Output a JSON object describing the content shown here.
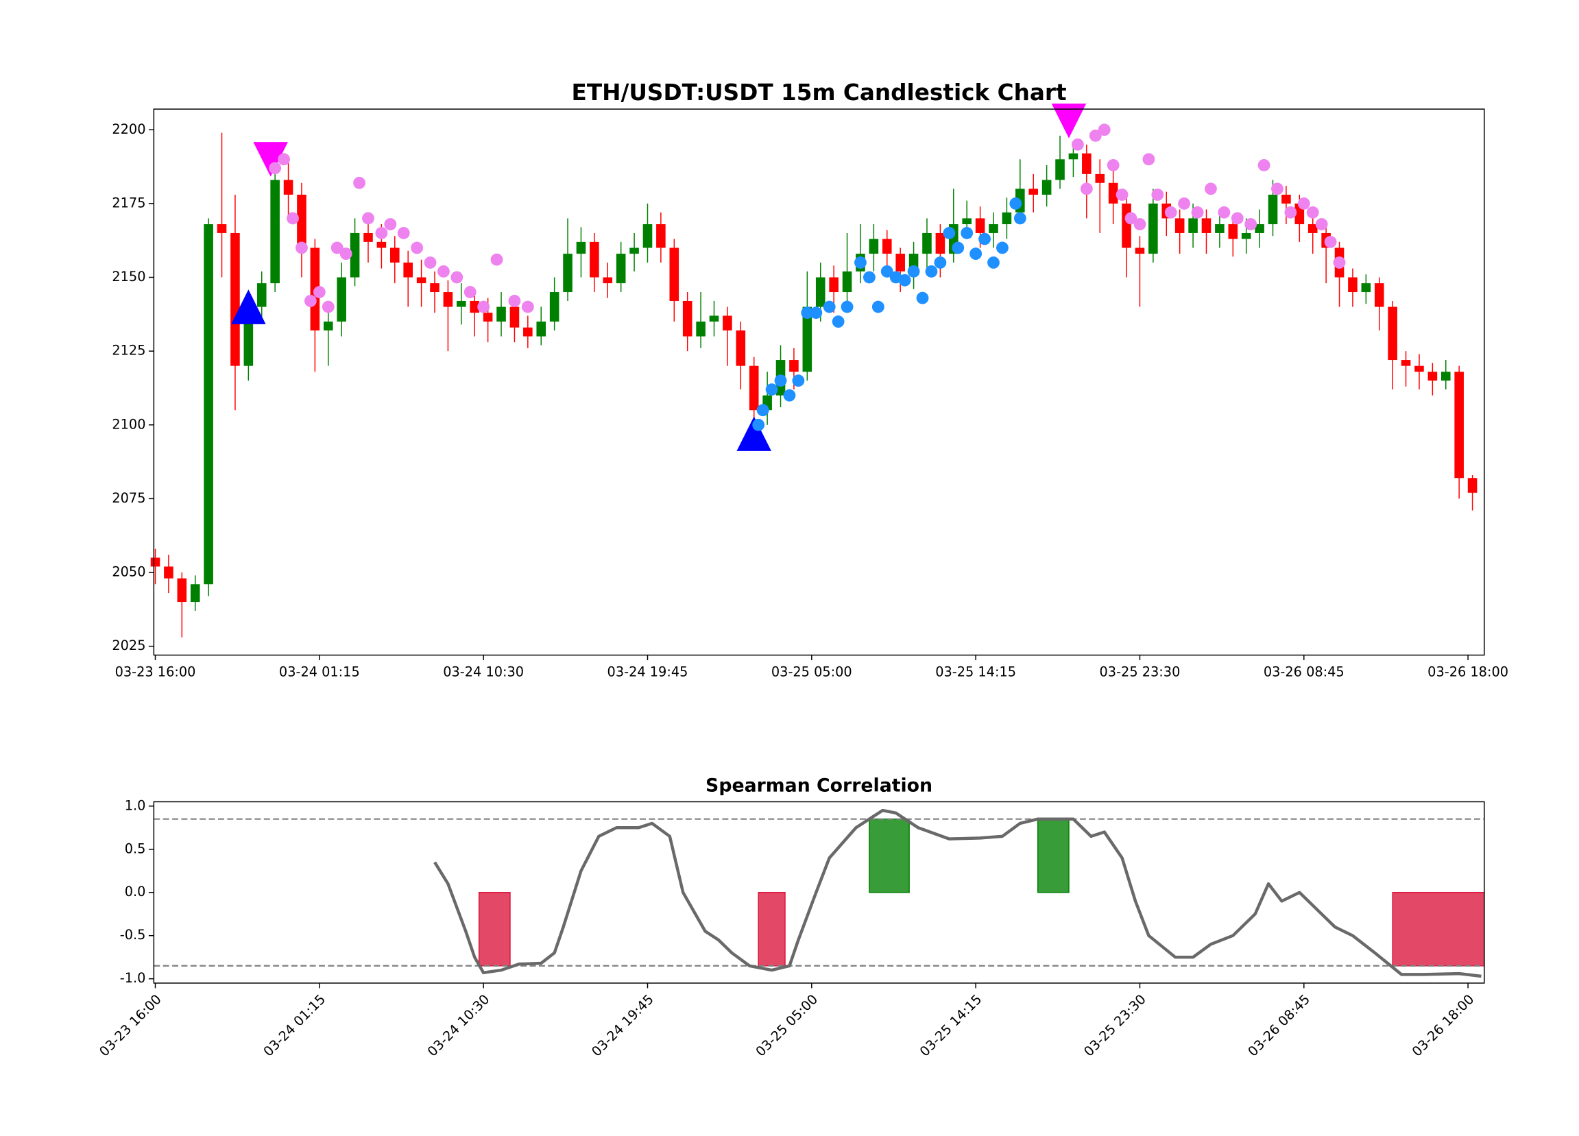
{
  "chart_data": [
    {
      "type": "candlestick",
      "title": "ETH/USDT:USDT 15m Candlestick Chart",
      "x": [
        "03-23 16:00",
        "03-23 16:45",
        "03-23 17:30",
        "03-23 18:15",
        "03-23 19:00",
        "03-23 19:45",
        "03-23 20:30",
        "03-23 21:15",
        "03-23 22:00",
        "03-23 22:45",
        "03-23 23:30",
        "03-24 00:15",
        "03-24 01:00",
        "03-24 01:45",
        "03-24 02:30",
        "03-24 03:15",
        "03-24 04:00",
        "03-24 04:45",
        "03-24 05:30",
        "03-24 06:15",
        "03-24 07:00",
        "03-24 07:45",
        "03-24 08:30",
        "03-24 09:15",
        "03-24 10:00",
        "03-24 10:45",
        "03-24 11:30",
        "03-24 12:15",
        "03-24 13:00",
        "03-24 13:45",
        "03-24 14:30",
        "03-24 15:15",
        "03-24 16:00",
        "03-24 16:45",
        "03-24 17:30",
        "03-24 18:15",
        "03-24 19:00",
        "03-24 19:45",
        "03-24 20:30",
        "03-24 21:15",
        "03-24 22:00",
        "03-24 22:45",
        "03-24 23:30",
        "03-25 00:15",
        "03-25 01:00",
        "03-25 01:45",
        "03-25 02:30",
        "03-25 03:15",
        "03-25 04:00",
        "03-25 04:45",
        "03-25 05:30",
        "03-25 06:15",
        "03-25 07:00",
        "03-25 07:45",
        "03-25 08:30",
        "03-25 09:15",
        "03-25 10:00",
        "03-25 10:45",
        "03-25 11:30",
        "03-25 12:15",
        "03-25 13:00",
        "03-25 13:45",
        "03-25 14:30",
        "03-25 15:15",
        "03-25 16:00",
        "03-25 16:45",
        "03-25 17:30",
        "03-25 18:15",
        "03-25 19:00",
        "03-25 19:45",
        "03-25 20:30",
        "03-25 21:15",
        "03-25 22:00",
        "03-25 22:45",
        "03-25 23:30",
        "03-26 00:15",
        "03-26 01:00",
        "03-26 01:45",
        "03-26 02:30",
        "03-26 03:15",
        "03-26 04:00",
        "03-26 04:45",
        "03-26 05:30",
        "03-26 06:15",
        "03-26 07:00",
        "03-26 07:45",
        "03-26 08:30",
        "03-26 09:15",
        "03-26 10:00",
        "03-26 10:45",
        "03-26 11:30",
        "03-26 12:15",
        "03-26 13:00",
        "03-26 13:45",
        "03-26 14:30",
        "03-26 15:15",
        "03-26 16:00",
        "03-26 16:45",
        "03-26 17:30",
        "03-26 18:15"
      ],
      "open": [
        2055,
        2052,
        2048,
        2040,
        2046,
        2168,
        2165,
        2120,
        2140,
        2148,
        2183,
        2178,
        2160,
        2132,
        2135,
        2150,
        2165,
        2162,
        2160,
        2155,
        2150,
        2148,
        2145,
        2140,
        2142,
        2138,
        2135,
        2140,
        2133,
        2130,
        2135,
        2145,
        2158,
        2162,
        2150,
        2148,
        2158,
        2160,
        2168,
        2160,
        2142,
        2130,
        2135,
        2137,
        2132,
        2120,
        2105,
        2110,
        2122,
        2118,
        2140,
        2150,
        2145,
        2152,
        2158,
        2163,
        2158,
        2152,
        2158,
        2165,
        2158,
        2168,
        2170,
        2165,
        2168,
        2172,
        2180,
        2178,
        2183,
        2190,
        2192,
        2185,
        2182,
        2175,
        2160,
        2158,
        2175,
        2170,
        2165,
        2170,
        2165,
        2168,
        2163,
        2165,
        2168,
        2178,
        2175,
        2168,
        2165,
        2160,
        2150,
        2145,
        2148,
        2140,
        2122,
        2120,
        2118,
        2115,
        2118,
        2082
      ],
      "high": [
        2058,
        2056,
        2050,
        2049,
        2170,
        2199,
        2178,
        2145,
        2152,
        2188,
        2190,
        2182,
        2163,
        2140,
        2155,
        2170,
        2170,
        2168,
        2164,
        2159,
        2156,
        2152,
        2149,
        2148,
        2146,
        2143,
        2145,
        2144,
        2137,
        2140,
        2150,
        2170,
        2167,
        2165,
        2155,
        2162,
        2165,
        2175,
        2172,
        2163,
        2145,
        2145,
        2142,
        2140,
        2135,
        2123,
        2118,
        2127,
        2126,
        2152,
        2155,
        2154,
        2165,
        2168,
        2168,
        2166,
        2160,
        2162,
        2170,
        2168,
        2180,
        2176,
        2174,
        2172,
        2177,
        2190,
        2185,
        2188,
        2198,
        2196,
        2195,
        2190,
        2186,
        2178,
        2164,
        2180,
        2179,
        2173,
        2175,
        2173,
        2173,
        2171,
        2170,
        2173,
        2183,
        2181,
        2178,
        2171,
        2168,
        2162,
        2153,
        2151,
        2150,
        2142,
        2125,
        2124,
        2121,
        2122,
        2120,
        2083
      ],
      "low": [
        2046,
        2043,
        2028,
        2037,
        2042,
        2150,
        2105,
        2115,
        2135,
        2145,
        2170,
        2150,
        2118,
        2120,
        2130,
        2147,
        2155,
        2153,
        2148,
        2140,
        2140,
        2138,
        2125,
        2134,
        2130,
        2128,
        2130,
        2128,
        2126,
        2127,
        2132,
        2142,
        2150,
        2145,
        2143,
        2145,
        2152,
        2155,
        2155,
        2135,
        2125,
        2126,
        2130,
        2120,
        2112,
        2100,
        2100,
        2106,
        2112,
        2115,
        2135,
        2138,
        2140,
        2148,
        2152,
        2150,
        2145,
        2146,
        2153,
        2150,
        2155,
        2163,
        2160,
        2160,
        2163,
        2168,
        2172,
        2174,
        2180,
        2184,
        2170,
        2165,
        2168,
        2150,
        2140,
        2155,
        2164,
        2158,
        2160,
        2158,
        2160,
        2157,
        2158,
        2160,
        2164,
        2168,
        2162,
        2158,
        2148,
        2140,
        2140,
        2141,
        2132,
        2112,
        2113,
        2112,
        2110,
        2112,
        2075,
        2071
      ],
      "close": [
        2052,
        2048,
        2040,
        2046,
        2168,
        2165,
        2120,
        2140,
        2148,
        2183,
        2178,
        2160,
        2132,
        2135,
        2150,
        2165,
        2162,
        2160,
        2155,
        2150,
        2148,
        2145,
        2140,
        2142,
        2138,
        2135,
        2140,
        2133,
        2130,
        2135,
        2145,
        2158,
        2162,
        2150,
        2148,
        2158,
        2160,
        2168,
        2160,
        2142,
        2130,
        2135,
        2137,
        2132,
        2120,
        2105,
        2110,
        2122,
        2118,
        2140,
        2150,
        2145,
        2152,
        2158,
        2163,
        2158,
        2152,
        2158,
        2165,
        2158,
        2168,
        2170,
        2165,
        2168,
        2172,
        2180,
        2178,
        2183,
        2190,
        2192,
        2185,
        2182,
        2175,
        2160,
        2158,
        2175,
        2170,
        2165,
        2170,
        2165,
        2168,
        2163,
        2165,
        2168,
        2178,
        2175,
        2168,
        2165,
        2160,
        2150,
        2145,
        2148,
        2140,
        2122,
        2120,
        2118,
        2115,
        2118,
        2082,
        2077
      ],
      "up_color": "green",
      "down_color": "red",
      "markers": [
        {
          "shape": "triangle-up",
          "color": "blue",
          "x": [
            "03-23 21:15",
            "03-25 01:45"
          ],
          "values": [
            2140,
            2097
          ]
        },
        {
          "shape": "triangle-down",
          "color": "magenta",
          "x": [
            "03-23 22:30",
            "03-25 19:30"
          ],
          "values": [
            2190,
            2203
          ]
        },
        {
          "shape": "circle",
          "color": "violet",
          "x": [
            "03-23 22:45",
            "03-23 23:15",
            "03-23 23:45",
            "03-24 00:15",
            "03-24 00:45",
            "03-24 01:15",
            "03-24 01:45",
            "03-24 02:15",
            "03-24 02:45",
            "03-24 03:30",
            "03-24 04:00",
            "03-24 04:45",
            "03-24 05:15",
            "03-24 06:00",
            "03-24 06:45",
            "03-24 07:30",
            "03-24 08:15",
            "03-24 09:00",
            "03-24 09:45",
            "03-24 10:30",
            "03-24 11:15",
            "03-24 12:15",
            "03-24 13:00",
            "03-25 20:00",
            "03-25 20:30",
            "03-25 21:00",
            "03-25 21:30",
            "03-25 22:00",
            "03-25 22:30",
            "03-25 23:00",
            "03-25 23:30",
            "03-26 00:00",
            "03-26 00:30",
            "03-26 01:15",
            "03-26 02:00",
            "03-26 02:45",
            "03-26 03:30",
            "03-26 04:15",
            "03-26 05:00",
            "03-26 05:45",
            "03-26 06:30",
            "03-26 07:15",
            "03-26 08:00",
            "03-26 08:45",
            "03-26 09:15",
            "03-26 09:45",
            "03-26 10:15",
            "03-26 10:45"
          ],
          "values": [
            2187,
            2190,
            2170,
            2160,
            2142,
            2145,
            2140,
            2160,
            2158,
            2182,
            2170,
            2165,
            2168,
            2165,
            2160,
            2155,
            2152,
            2150,
            2145,
            2140,
            2156,
            2142,
            2140,
            2195,
            2180,
            2198,
            2200,
            2188,
            2178,
            2170,
            2168,
            2190,
            2178,
            2172,
            2175,
            2172,
            2180,
            2172,
            2170,
            2168,
            2188,
            2180,
            2172,
            2175,
            2172,
            2168,
            2162,
            2155
          ]
        },
        {
          "shape": "circle",
          "color": "dodgerblue",
          "x": [
            "03-25 02:00",
            "03-25 02:15",
            "03-25 02:45",
            "03-25 03:15",
            "03-25 03:45",
            "03-25 04:15",
            "03-25 04:45",
            "03-25 05:15",
            "03-25 06:00",
            "03-25 06:30",
            "03-25 07:00",
            "03-25 07:45",
            "03-25 08:15",
            "03-25 08:45",
            "03-25 09:15",
            "03-25 09:45",
            "03-25 10:15",
            "03-25 10:45",
            "03-25 11:15",
            "03-25 11:45",
            "03-25 12:15",
            "03-25 12:45",
            "03-25 13:15",
            "03-25 13:45",
            "03-25 14:15",
            "03-25 14:45",
            "03-25 15:15",
            "03-25 15:45",
            "03-25 16:30",
            "03-25 16:45"
          ],
          "values": [
            2100,
            2105,
            2112,
            2115,
            2110,
            2115,
            2138,
            2138,
            2140,
            2135,
            2140,
            2155,
            2150,
            2140,
            2152,
            2150,
            2149,
            2152,
            2143,
            2152,
            2155,
            2165,
            2160,
            2165,
            2158,
            2163,
            2155,
            2160,
            2175,
            2170
          ]
        }
      ],
      "xlim": [
        "03-23 15:55",
        "03-26 18:55"
      ],
      "xticks": [
        "03-23 16:00",
        "03-24 01:15",
        "03-24 10:30",
        "03-24 19:45",
        "03-25 05:00",
        "03-25 14:15",
        "03-25 23:30",
        "03-26 08:45",
        "03-26 18:00"
      ],
      "ylim": [
        2022,
        2207
      ],
      "yticks": [
        2025,
        2050,
        2075,
        2100,
        2125,
        2150,
        2175,
        2200
      ]
    },
    {
      "type": "line",
      "title": "Spearman Correlation",
      "series": [
        {
          "color": "dimgray",
          "x": [
            "03-24 07:45",
            "03-24 08:30",
            "03-24 09:30",
            "03-24 10:00",
            "03-24 10:30",
            "03-24 11:30",
            "03-24 12:30",
            "03-24 13:45",
            "03-24 14:30",
            "03-24 15:00",
            "03-24 16:00",
            "03-24 17:00",
            "03-24 18:00",
            "03-24 19:15",
            "03-24 20:00",
            "03-24 21:00",
            "03-24 21:45",
            "03-24 23:00",
            "03-24 23:45",
            "03-25 00:30",
            "03-25 01:30",
            "03-25 02:45",
            "03-25 03:45",
            "03-25 04:15",
            "03-25 05:15",
            "03-25 06:00",
            "03-25 07:30",
            "03-25 09:00",
            "03-25 09:45",
            "03-25 11:00",
            "03-25 12:45",
            "03-25 14:30",
            "03-25 15:45",
            "03-25 16:45",
            "03-25 17:45",
            "03-25 19:45",
            "03-25 20:45",
            "03-25 21:30",
            "03-25 22:30",
            "03-25 23:15",
            "03-26 00:00",
            "03-26 01:30",
            "03-26 02:30",
            "03-26 03:30",
            "03-26 04:45",
            "03-26 06:00",
            "03-26 06:45",
            "03-26 07:30",
            "03-26 08:30",
            "03-26 09:30",
            "03-26 10:30",
            "03-26 11:30",
            "03-26 12:45",
            "03-26 14:15",
            "03-26 15:30",
            "03-26 17:30",
            "03-26 18:45"
          ],
          "values": [
            0.35,
            0.1,
            -0.45,
            -0.75,
            -0.93,
            -0.9,
            -0.83,
            -0.82,
            -0.7,
            -0.4,
            0.25,
            0.65,
            0.75,
            0.75,
            0.8,
            0.65,
            0.0,
            -0.45,
            -0.55,
            -0.7,
            -0.85,
            -0.9,
            -0.85,
            -0.55,
            0.0,
            0.4,
            0.75,
            0.95,
            0.92,
            0.75,
            0.62,
            0.63,
            0.65,
            0.8,
            0.85,
            0.85,
            0.65,
            0.7,
            0.4,
            -0.1,
            -0.5,
            -0.75,
            -0.75,
            -0.6,
            -0.5,
            -0.25,
            0.1,
            -0.1,
            0.0,
            -0.2,
            -0.4,
            -0.5,
            -0.7,
            -0.95,
            -0.95,
            -0.94,
            -0.97
          ]
        }
      ],
      "hlines": [
        0.85,
        -0.85
      ],
      "hline_color": "gray",
      "regions": [
        {
          "start": "03-24 10:15",
          "end": "03-24 12:00",
          "value": -0.85,
          "color": "#dc143c"
        },
        {
          "start": "03-25 02:00",
          "end": "03-25 03:30",
          "value": -0.85,
          "color": "#dc143c"
        },
        {
          "start": "03-25 08:15",
          "end": "03-25 10:30",
          "value": 0.85,
          "color": "green"
        },
        {
          "start": "03-25 17:45",
          "end": "03-25 19:30",
          "value": 0.85,
          "color": "green"
        },
        {
          "start": "03-26 13:45",
          "end": "03-26 18:55",
          "value": -0.85,
          "color": "#dc143c"
        }
      ],
      "xlim": [
        "03-23 15:55",
        "03-26 18:55"
      ],
      "xticks": [
        "03-23 16:00",
        "03-24 01:15",
        "03-24 10:30",
        "03-24 19:45",
        "03-25 05:00",
        "03-25 14:15",
        "03-25 23:30",
        "03-26 08:45",
        "03-26 18:00"
      ],
      "xtick_rotation": 45,
      "ylim": [
        -1.05,
        1.05
      ],
      "yticks": [
        {
          "value": -1.0,
          "label": "-1.0"
        },
        -0.5,
        {
          "value": 0.0,
          "label": "0.0"
        },
        0.5,
        {
          "value": 1.0,
          "label": "1.0"
        }
      ]
    }
  ]
}
